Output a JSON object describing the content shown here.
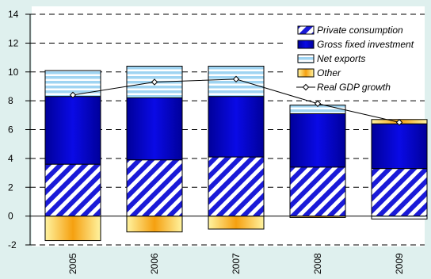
{
  "chart_data": {
    "type": "bar",
    "stacked": true,
    "categories": [
      "2005",
      "2006",
      "2007",
      "2008",
      "2009"
    ],
    "series": [
      {
        "name": "Private consumption",
        "kind": "bar",
        "values": [
          3.6,
          3.9,
          4.1,
          3.4,
          3.3
        ]
      },
      {
        "name": "Gross fixed investment",
        "kind": "bar",
        "values": [
          4.7,
          4.3,
          4.2,
          3.7,
          3.1
        ]
      },
      {
        "name": "Net exports",
        "kind": "bar",
        "values": [
          1.8,
          2.2,
          2.1,
          0.6,
          -0.2
        ]
      },
      {
        "name": "Other",
        "kind": "bar",
        "values": [
          -1.7,
          -1.1,
          -0.9,
          -0.1,
          0.3
        ]
      },
      {
        "name": "Real GDP growth",
        "kind": "line",
        "values": [
          8.4,
          9.3,
          9.5,
          7.8,
          6.5
        ]
      }
    ],
    "ylim": [
      -2,
      14
    ],
    "yticks": [
      -2,
      0,
      2,
      4,
      6,
      8,
      10,
      12,
      14
    ],
    "grid": true,
    "grid_style": "dashed",
    "legend_position": "top-right",
    "colors": {
      "background": "#dff0ee",
      "plot_background": "#ffffff",
      "private_consumption": "#1a1ad8",
      "gross_fixed_investment": "#0000c8",
      "net_exports": "#9fd4f2",
      "other": "#f5a010",
      "gdp_line": "#000000"
    }
  }
}
